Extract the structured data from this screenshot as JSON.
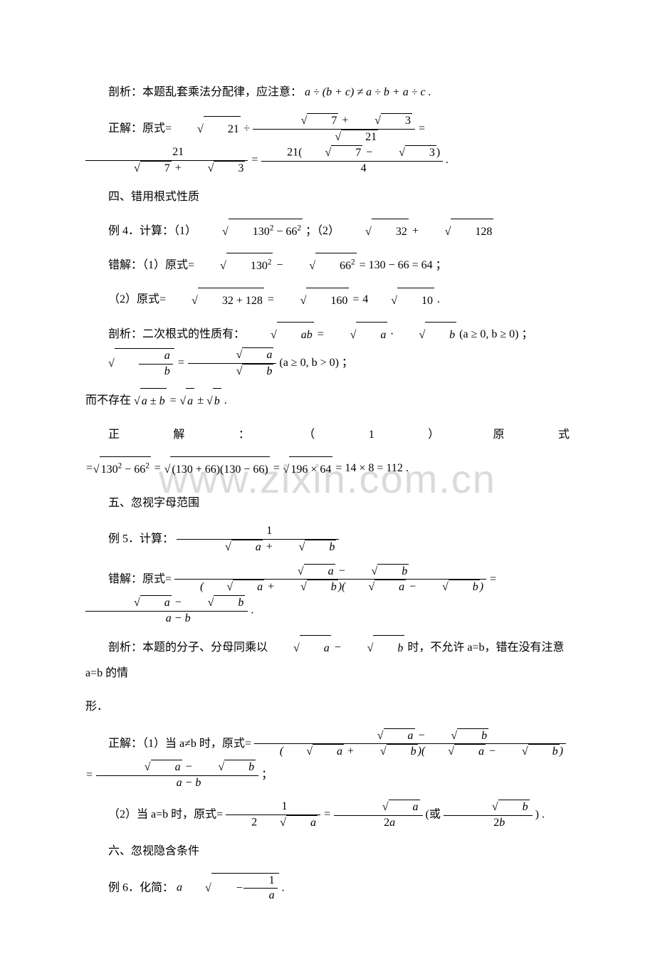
{
  "page": {
    "background_color": "#ffffff",
    "text_color": "#000000",
    "font_family_cn": "SimSun",
    "font_family_math": "Times New Roman",
    "base_fontsize": 16,
    "watermark_text": "www.zixin.com.cn",
    "watermark_color": "rgba(150,150,150,0.35)",
    "watermark_fontsize": 56
  },
  "lines": {
    "l1_analysis": "剖析：本题乱套乘法分配律，应注意：",
    "l1_formula": "a ÷ (b + c) ≠ a ÷ b + a ÷ c .",
    "l2_correct": "正解：原式=",
    "l3_heading4": "四、错用根式性质",
    "l4_ex4": "例 4．计算：（1）",
    "l4_part2": "；（2）",
    "l5_wrong": "错解：（1）原式=",
    "l5_equals": " = 130 − 66 = 64 ；",
    "l6_part2_pre": "（2）原式=",
    "l6_end": " .",
    "l7_analysis": "剖析：二次根式的性质有：",
    "l7_cond1": "(a ≥ 0, b ≥ 0) ；",
    "l7_cond2": "(a ≥ 0, b > 0) ；",
    "l8_noexist": "而不存在",
    "l8_end": " .",
    "l9_correct_row": [
      "正",
      "解",
      "：",
      "（",
      "1",
      "）",
      "原",
      "式"
    ],
    "l10_formula_pre": "=",
    "l10_result": " = 14 × 8 = 112 .",
    "l11_heading5": "五、忽视字母范围",
    "l12_ex5": "例 5．计算：",
    "l13_wrong": "错解：原式=",
    "l13_end": " .",
    "l14_analysis_a": "剖析：本题的分子、分母同乘以",
    "l14_analysis_b": " 时，不允许 a=b，错在没有注意 a=b 的情",
    "l14_analysis_c": "形．",
    "l15_correct_a": "正解：（1）当 a≠b 时，原式=",
    "l15_end": "；",
    "l16_part2": "（2）当 a=b 时，原式=",
    "l16_or": "(或",
    "l16_end": ") .",
    "l17_heading6": "六、忽视隐含条件",
    "l18_ex6": "例 6．化简：",
    "l18_end": " ."
  },
  "math_values": {
    "sqrt21": "21",
    "sqrt7": "7",
    "sqrt3": "3",
    "num21": "21",
    "num4": "4",
    "sq130": "130",
    "sq66": "66",
    "num32": "32",
    "num128": "128",
    "sum160": "32 + 128",
    "sqrt160": "160",
    "coef4": "4",
    "sqrt10": "10",
    "var_a": "a",
    "var_b": "b",
    "var_ab": "ab",
    "diff130_66": "(130 + 66)(130 − 66)",
    "prod196_64": "196 × 64",
    "num1": "1",
    "coef2": "2",
    "expr_aminus1overa": "−"
  }
}
